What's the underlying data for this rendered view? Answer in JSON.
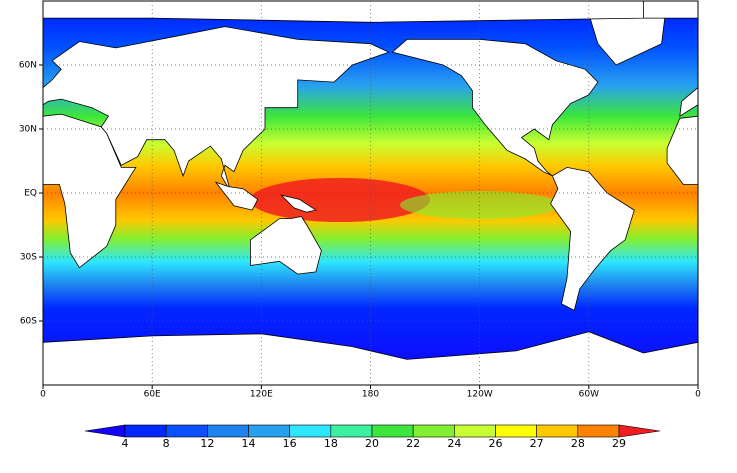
{
  "map": {
    "x_axis": {
      "ticks": [
        "0",
        "60E",
        "120E",
        "180",
        "120W",
        "60W",
        "0"
      ]
    },
    "y_axis": {
      "ticks": [
        "60N",
        "30N",
        "EQ",
        "30S",
        "60S"
      ]
    },
    "colorbar": {
      "labels": [
        "4",
        "8",
        "12",
        "14",
        "16",
        "18",
        "20",
        "22",
        "24",
        "26",
        "27",
        "28",
        "29"
      ],
      "colors": [
        "#1400ff",
        "#0028ff",
        "#0a50ff",
        "#1e82f0",
        "#28a0f0",
        "#2ee6ff",
        "#3cf0a0",
        "#3ce63c",
        "#82f032",
        "#c8ff32",
        "#ffff00",
        "#ffc800",
        "#ff8200",
        "#f01e1e"
      ]
    }
  }
}
